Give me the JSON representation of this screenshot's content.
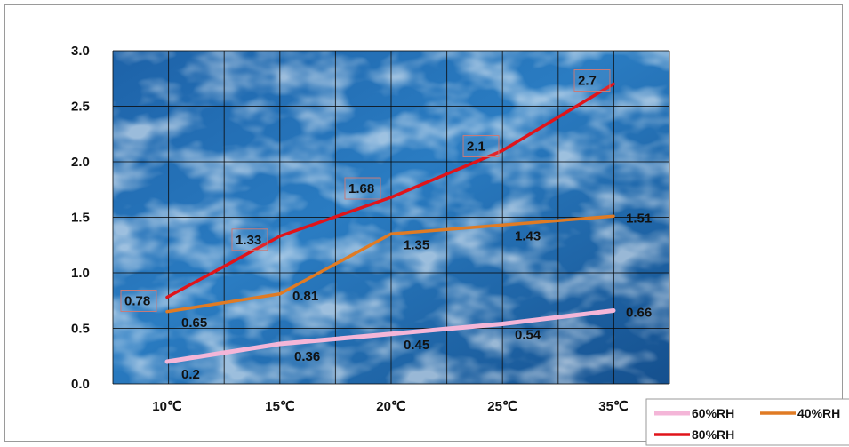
{
  "chart_data": {
    "type": "line",
    "categories": [
      "10℃",
      "15℃",
      "20℃",
      "25℃",
      "35℃"
    ],
    "ylim": [
      0,
      3.0
    ],
    "yticks": [
      "0.0",
      "0.5",
      "1.0",
      "1.5",
      "2.0",
      "2.5",
      "3.0"
    ],
    "grid": true,
    "legend_position": "bottom-right",
    "series": [
      {
        "name": "60%RH",
        "color": "#f4b6d8",
        "values": [
          0.2,
          0.36,
          0.45,
          0.54,
          0.66
        ],
        "labels": [
          "0.2",
          "0.36",
          "0.45",
          "0.54",
          "0.66"
        ]
      },
      {
        "name": "40%RH",
        "color": "#e07b24",
        "values": [
          0.65,
          0.81,
          1.35,
          1.43,
          1.51
        ],
        "labels": [
          "0.65",
          "0.81",
          "1.35",
          "1.43",
          "1.51"
        ]
      },
      {
        "name": "80%RH",
        "color": "#e0141a",
        "values": [
          0.78,
          1.33,
          1.68,
          2.1,
          2.7
        ],
        "labels": [
          "0.78",
          "1.33",
          "1.68",
          "2.1",
          "2.7"
        ]
      }
    ]
  }
}
